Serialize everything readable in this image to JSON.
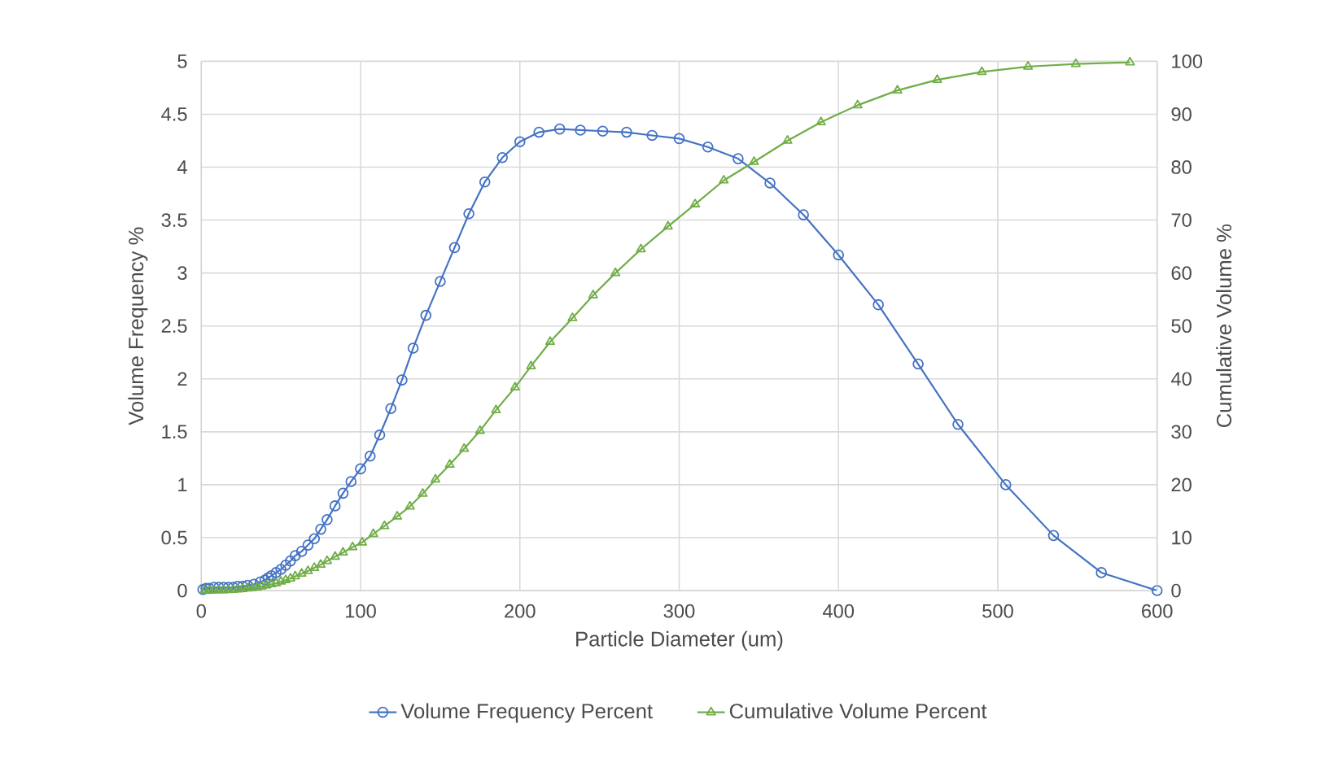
{
  "chart_data": {
    "type": "line",
    "xlabel": "Particle Diameter (um)",
    "ylabel": "Volume Frequency %",
    "y2label": "Cumulative Volume %",
    "xlim": [
      0,
      600
    ],
    "xticks": [
      0,
      100,
      200,
      300,
      400,
      500,
      600
    ],
    "ylim": [
      0,
      5
    ],
    "yticks": [
      0,
      0.5,
      1,
      1.5,
      2,
      2.5,
      3,
      3.5,
      4,
      4.5,
      5
    ],
    "y2lim": [
      0,
      100
    ],
    "y2ticks": [
      0,
      10,
      20,
      30,
      40,
      50,
      60,
      70,
      80,
      90,
      100
    ],
    "grid": true,
    "legend": "bottom",
    "line_style": "solid",
    "series": [
      {
        "name": "Volume Frequency Percent",
        "color": "#4472c4",
        "marker": "circle",
        "x": [
          1,
          3,
          5,
          8,
          11,
          14,
          17,
          20,
          23,
          26,
          29,
          33,
          37,
          40,
          42,
          44,
          47,
          50,
          53,
          56,
          59,
          63,
          67,
          71,
          75,
          79,
          84,
          89,
          94,
          100,
          106,
          112,
          119,
          126,
          133,
          141,
          150,
          159,
          168,
          178,
          189,
          200,
          212,
          225,
          238,
          252,
          267,
          283,
          300,
          318,
          337,
          357,
          378,
          400,
          425,
          450,
          475,
          505,
          535,
          565,
          600
        ],
        "values": [
          0.01,
          0.02,
          0.02,
          0.03,
          0.03,
          0.03,
          0.03,
          0.03,
          0.04,
          0.04,
          0.05,
          0.06,
          0.08,
          0.1,
          0.12,
          0.14,
          0.17,
          0.2,
          0.24,
          0.28,
          0.33,
          0.37,
          0.43,
          0.49,
          0.58,
          0.67,
          0.8,
          0.92,
          1.03,
          1.15,
          1.27,
          1.47,
          1.72,
          1.99,
          2.29,
          2.6,
          2.92,
          3.24,
          3.56,
          3.86,
          4.09,
          4.24,
          4.33,
          4.36,
          4.35,
          4.34,
          4.33,
          4.3,
          4.27,
          4.19,
          4.08,
          3.85,
          3.55,
          3.17,
          2.7,
          2.14,
          1.57,
          1.0,
          0.52,
          0.17,
          0.0
        ]
      },
      {
        "name": "Cumulative Volume Percent",
        "color": "#70ad47",
        "marker": "triangle",
        "axis": "y2",
        "x": [
          2,
          5,
          8,
          11,
          14,
          17,
          20,
          23,
          26,
          29,
          32,
          35,
          38,
          41,
          44,
          47,
          50,
          53,
          56,
          59,
          63,
          67,
          71,
          75,
          79,
          84,
          89,
          95,
          101,
          108,
          115,
          123,
          131,
          139,
          147,
          156,
          165,
          175,
          185,
          197,
          207,
          219,
          233,
          246,
          260,
          276,
          293,
          310,
          328,
          347,
          368,
          389,
          412,
          437,
          462,
          490,
          519,
          549,
          583
        ],
        "values": [
          0.01,
          0.02,
          0.03,
          0.05,
          0.07,
          0.1,
          0.15,
          0.2,
          0.3,
          0.4,
          0.5,
          0.6,
          0.8,
          1.0,
          1.2,
          1.4,
          1.7,
          2.0,
          2.3,
          2.7,
          3.2,
          3.7,
          4.3,
          4.9,
          5.6,
          6.4,
          7.2,
          8.2,
          9.1,
          10.7,
          12.2,
          14,
          15.9,
          18.3,
          21,
          23.8,
          26.8,
          30.2,
          34.1,
          38.4,
          42.4,
          47,
          51.5,
          55.8,
          60,
          64.5,
          68.8,
          73,
          77.5,
          81,
          85,
          88.5,
          91.7,
          94.5,
          96.5,
          98,
          99,
          99.5,
          99.8
        ]
      }
    ]
  }
}
